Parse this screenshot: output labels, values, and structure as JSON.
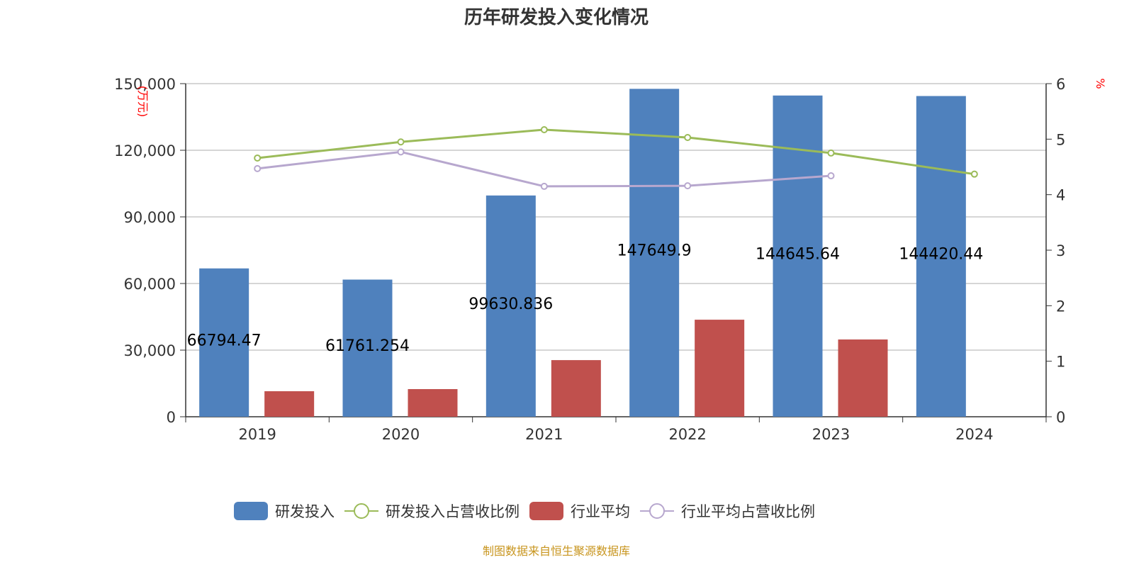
{
  "title": "历年研发投入变化情况",
  "source": "制图数据来自恒生聚源数据库",
  "colors": {
    "rd": "#4f81bd",
    "rd_ratio": "#9bbb59",
    "industry": "#c0504d",
    "industry_ratio": "#b7a7ce"
  },
  "chart_data": {
    "type": "bar",
    "title": "历年研发投入变化情况",
    "categories": [
      "2019",
      "2020",
      "2021",
      "2022",
      "2023",
      "2024"
    ],
    "ylabel": "(万元)",
    "y2label": "%",
    "ylim": [
      0,
      150000
    ],
    "y2lim": [
      0,
      6
    ],
    "yticks": [
      "0",
      "30,000",
      "60,000",
      "90,000",
      "120,000",
      "150,000"
    ],
    "y2ticks": [
      "0",
      "1",
      "2",
      "3",
      "4",
      "5",
      "6"
    ],
    "grid": true,
    "legend": "bottom",
    "series": [
      {
        "name": "研发投入",
        "type": "bar",
        "axis": "left",
        "values": [
          66794.47,
          61761.254,
          99630.836,
          147649.9,
          144645.64,
          144420.44
        ],
        "labels": [
          "66794.47",
          "61761.254",
          "99630.836",
          "147649.9",
          "144645.64",
          "144420.44"
        ]
      },
      {
        "name": "研发投入占营收比例",
        "type": "line",
        "axis": "right",
        "values": [
          4.66,
          4.95,
          5.17,
          5.03,
          4.75,
          4.37
        ]
      },
      {
        "name": "行业平均",
        "type": "bar",
        "axis": "left",
        "values": [
          11500,
          12450,
          25500,
          43700,
          34800,
          null
        ]
      },
      {
        "name": "行业平均占营收比例",
        "type": "line",
        "axis": "right",
        "values": [
          4.47,
          4.77,
          4.15,
          4.16,
          4.34,
          null
        ]
      }
    ]
  }
}
